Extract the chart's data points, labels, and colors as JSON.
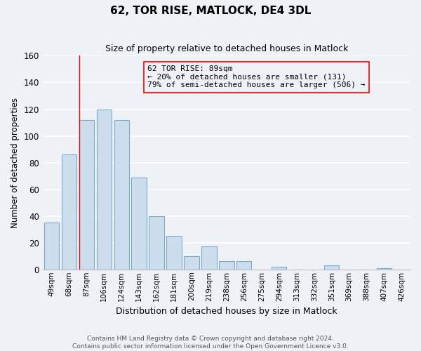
{
  "title": "62, TOR RISE, MATLOCK, DE4 3DL",
  "subtitle": "Size of property relative to detached houses in Matlock",
  "xlabel": "Distribution of detached houses by size in Matlock",
  "ylabel": "Number of detached properties",
  "footer_line1": "Contains HM Land Registry data © Crown copyright and database right 2024.",
  "footer_line2": "Contains public sector information licensed under the Open Government Licence v3.0.",
  "bar_labels": [
    "49sqm",
    "68sqm",
    "87sqm",
    "106sqm",
    "124sqm",
    "143sqm",
    "162sqm",
    "181sqm",
    "200sqm",
    "219sqm",
    "238sqm",
    "256sqm",
    "275sqm",
    "294sqm",
    "313sqm",
    "332sqm",
    "351sqm",
    "369sqm",
    "388sqm",
    "407sqm",
    "426sqm"
  ],
  "bar_values": [
    35,
    86,
    112,
    120,
    112,
    69,
    40,
    25,
    10,
    17,
    6,
    6,
    0,
    2,
    0,
    0,
    3,
    0,
    0,
    1,
    0
  ],
  "bar_color": "#ccdded",
  "bar_edge_color": "#7aaac8",
  "ylim": [
    0,
    160
  ],
  "yticks": [
    0,
    20,
    40,
    60,
    80,
    100,
    120,
    140,
    160
  ],
  "annotation_title": "62 TOR RISE: 89sqm",
  "annotation_line1": "← 20% of detached houses are smaller (131)",
  "annotation_line2": "79% of semi-detached houses are larger (506) →",
  "background_color": "#eef2f7",
  "grid_color": "#ffffff",
  "red_line_index": 2
}
